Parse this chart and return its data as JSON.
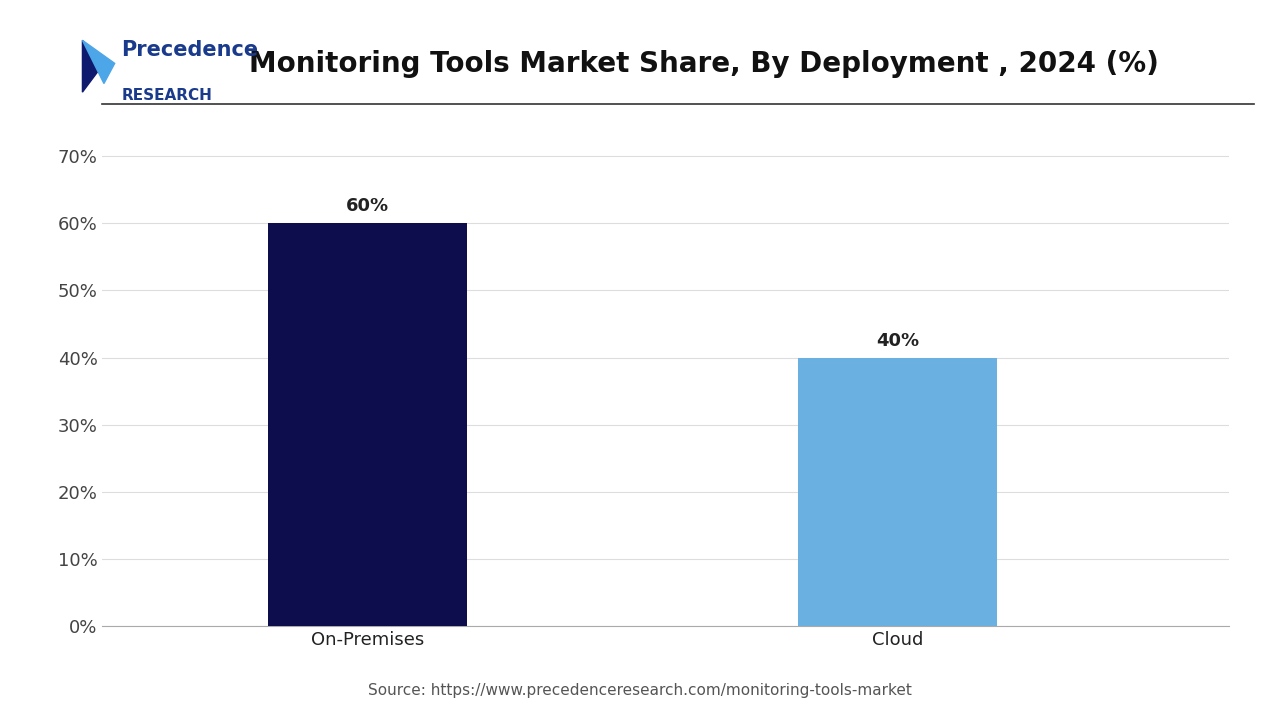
{
  "title": "Monitoring Tools Market Share, By Deployment , 2024 (%)",
  "categories": [
    "On-Premises",
    "Cloud"
  ],
  "values": [
    60,
    40
  ],
  "bar_colors": [
    "#0d0d4d",
    "#6ab0e0"
  ],
  "value_labels": [
    "60%",
    "40%"
  ],
  "yticks": [
    0,
    10,
    20,
    30,
    40,
    50,
    60,
    70
  ],
  "ytick_labels": [
    "0%",
    "10%",
    "20%",
    "30%",
    "40%",
    "50%",
    "60%",
    "70%"
  ],
  "ylim": [
    0,
    75
  ],
  "source_text": "Source: https://www.precedenceresearch.com/monitoring-tools-market",
  "logo_text_line1": "Precedence",
  "logo_text_line2": "RESEARCH",
  "background_color": "#ffffff",
  "grid_color": "#dddddd",
  "title_fontsize": 20,
  "label_fontsize": 13,
  "tick_fontsize": 13,
  "value_fontsize": 13,
  "source_fontsize": 11
}
